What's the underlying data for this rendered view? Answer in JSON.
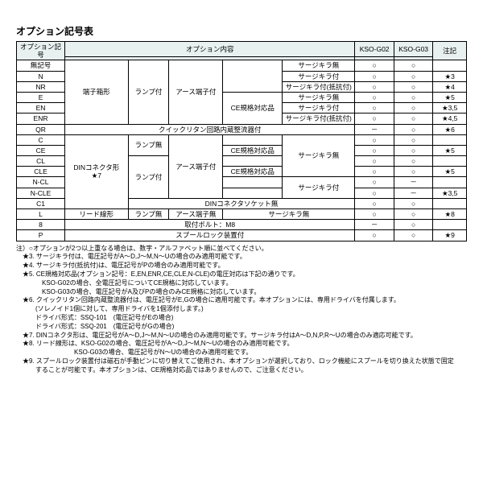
{
  "title": "オプション記号表",
  "header": {
    "col_symbol": "オプション記号",
    "col_content": "オプション内容",
    "col_g02": "KSO-G02",
    "col_g03": "KSO-G03",
    "col_note": "注記"
  },
  "circle": "○",
  "dash": "－",
  "rows": {
    "r1": {
      "sym": "無記号",
      "c6": "サージキラ無",
      "note": ""
    },
    "r2": {
      "sym": "N",
      "c2": "端子箱形",
      "c3": "ランプ付",
      "c4": "アース端子付",
      "c5": "",
      "c6": "サージキラ付",
      "note": "★3"
    },
    "r3": {
      "sym": "NR",
      "c6": "サージキラ付(抵抗付)",
      "note": "★4"
    },
    "r4": {
      "sym": "E",
      "c5": "CE規格対応品",
      "c6": "サージキラ無",
      "note": "★5"
    },
    "r5": {
      "sym": "EN",
      "c6": "サージキラ付",
      "note": "★3,5"
    },
    "r6": {
      "sym": "ENR",
      "c6": "サージキラ付(抵抗付)",
      "note": "★4,5"
    },
    "r7": {
      "sym": "QR",
      "c3_6": "クイックリタン回路内蔵整流器付",
      "note": "★6"
    },
    "r8": {
      "sym": "C",
      "c2": "DINコネクタ形\n★7",
      "c3": "ランプ無",
      "c4": "アース端子付",
      "c5": "",
      "c6": "サージキラ無",
      "note": ""
    },
    "r9": {
      "sym": "CE",
      "c5": "CE規格対応品",
      "note": "★5"
    },
    "r10": {
      "sym": "CL",
      "c3": "ランプ付",
      "c5": "",
      "note": ""
    },
    "r11": {
      "sym": "CLE",
      "c5": "CE規格対応品",
      "note": "★5"
    },
    "r12": {
      "sym": "N-CL",
      "c6": "サージキラ付",
      "note": ""
    },
    "r13": {
      "sym": "N-CLE",
      "note": "★3,5"
    },
    "r14": {
      "sym": "C1",
      "c3_6": "DINコネクタソケット無",
      "note": ""
    },
    "r15": {
      "sym": "L",
      "c2": "リード線形",
      "c3": "ランプ無",
      "c4": "アース端子無",
      "c5_6": "サージキラ無",
      "note": "★8"
    },
    "r16": {
      "sym": "8",
      "c2_6": "取付ボルト：M8",
      "note": ""
    },
    "r17": {
      "sym": "P",
      "c2_6": "スプールロック装置付",
      "note": "★9"
    }
  },
  "notes": {
    "n0": "注）○オプションが2つ以上重なる場合は、数字・アルファベット順に並べてください。",
    "n1": "　★3. サージキラ付は、電圧記号がA～D,J～M,N～Uの場合のみ適用可能です。",
    "n2": "　★4. サージキラ付(抵抗付)は、電圧記号がPの場合のみ適用可能です。",
    "n3": "　★5. CE規格対応品(オプション記号：E,EN,ENR,CE,CLE,N-CLE)の電圧対応は下記の通りです。",
    "n3a": "　　　　KSO-G02の場合、全電圧記号についてCE規格に対応しています。",
    "n3b": "　　　　KSO-G03の場合、電圧記号がA及びPの場合のみCE規格に対応しています。",
    "n4": "　★6. クイックリタン回路内蔵整流器付は、電圧記号がE,Gの場合に適用可能です。本オプションには、専用ドライバを付属します。",
    "n4a": "　　　(ソレノイド1個に対して、専用ドライバを1個添付します。)",
    "n4b": "　　　ドライバ形式：SSQ-101　(電圧記号がEの場合)",
    "n4c": "　　　ドライバ形式：SSQ-201　(電圧記号がGの場合)",
    "n5": "　★7. DINコネクタ形は、電圧記号がA～D,J～M,N～Uの場合のみ適用可能です。サージキラ付はA～D,N,P,R～Uの場合のみ適応可能です。",
    "n6": "　★8. リード線形は、KSO-G02の場合、電圧記号がA～D,J～M,N～Uの場合のみ適用可能です。",
    "n6a": "　　　　　　　　　KSO-G03の場合、電圧記号がN～Uの場合のみ適用可能です。",
    "n7": "　★9. スプールロック装置付は磁石が手動ピンに切り替えてご使用され、本オプションが選択しており、ロック機能にスプールを切り換えた状態で固定",
    "n7a": "　　　することが可能です。本オプションは、CE規格対応品ではありませんので、ご注意ください。"
  }
}
